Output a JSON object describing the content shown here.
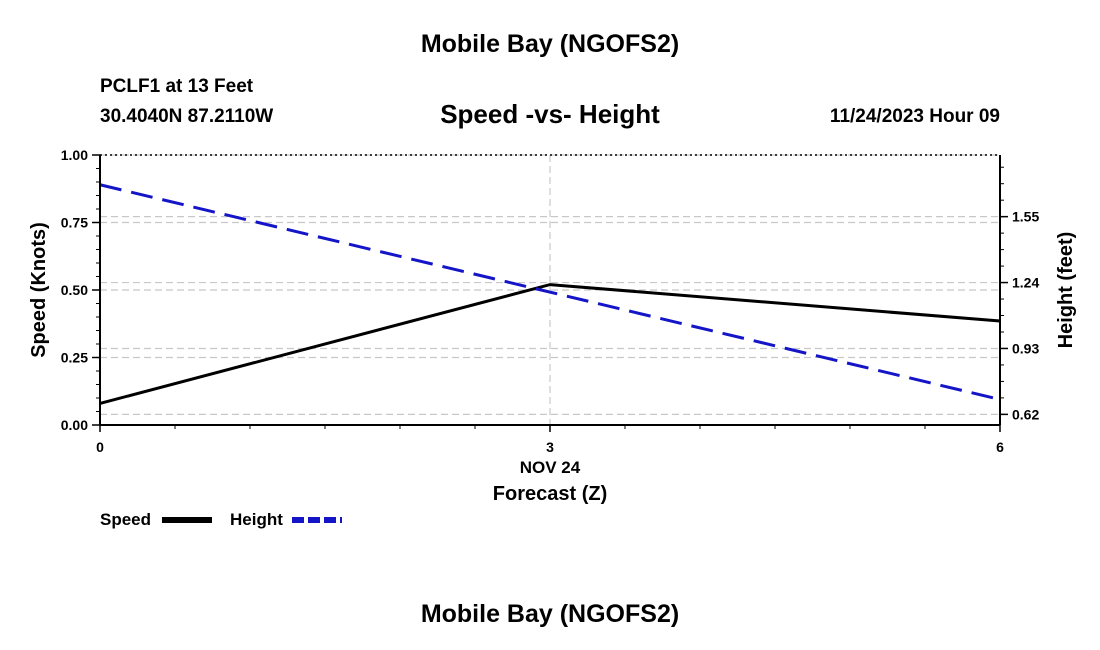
{
  "page": {
    "title_top": "Mobile Bay (NGOFS2)",
    "title_bottom": "Mobile Bay (NGOFS2)",
    "station": "PCLF1 at 13 Feet",
    "coords": "30.4040N  87.2110W",
    "datetime": "11/24/2023 Hour 09"
  },
  "chart_data": {
    "type": "line",
    "title": "Speed -vs- Height",
    "xlabel": "Forecast (Z)",
    "xlabel_date": "NOV 24",
    "x_ticks": [
      "0",
      "3",
      "6"
    ],
    "xlim": [
      0,
      6
    ],
    "ylabel_left": "Speed (Knots)",
    "ylim_left": [
      0,
      1
    ],
    "yticks_left": [
      "0.00",
      "0.25",
      "0.50",
      "0.75",
      "1.00"
    ],
    "ylabel_right": "Height (feet)",
    "ylim_right": [
      0.57,
      1.84
    ],
    "yticks_right": [
      "0.62",
      "0.93",
      "1.24",
      "1.55"
    ],
    "grid": true,
    "legend_position": "bottom-left",
    "series": [
      {
        "name": "Speed",
        "axis": "left",
        "color": "#000000",
        "style": "solid",
        "x": [
          0,
          3,
          6
        ],
        "values": [
          0.08,
          0.52,
          0.385
        ]
      },
      {
        "name": "Height",
        "axis": "right",
        "color": "#1515c8",
        "style": "dashed",
        "x": [
          0,
          6
        ],
        "values": [
          1.7,
          0.69
        ]
      }
    ]
  }
}
